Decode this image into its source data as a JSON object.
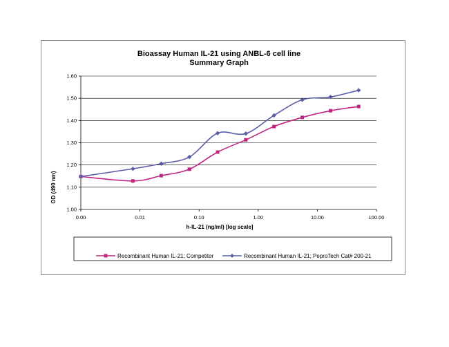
{
  "chart_data": {
    "type": "line",
    "title": "Bioassay Human IL-21 using ANBL-6 cell line",
    "subtitle": "Summary Graph",
    "xlabel": "h-IL-21 (ng/ml) [log scale]",
    "ylabel": "OD (490 nm)",
    "x_tick_labels": [
      "0.00",
      "0.01",
      "0.10",
      "1.00",
      "10.00",
      "100.00"
    ],
    "y_tick_labels": [
      "1.00",
      "1.10",
      "1.20",
      "1.30",
      "1.40",
      "1.50",
      "1.60"
    ],
    "ylim": [
      1.0,
      1.6
    ],
    "x_log_decades": [
      -3,
      2
    ],
    "x": [
      0.001,
      0.0076,
      0.0229,
      0.0686,
      0.206,
      0.617,
      1.85,
      5.56,
      16.7,
      50
    ],
    "series": [
      {
        "name": "Recombinant Human IL-21; Competitor",
        "color": "#c0267f",
        "marker": "square",
        "values": [
          1.148,
          1.128,
          1.152,
          1.181,
          1.258,
          1.313,
          1.373,
          1.414,
          1.444,
          1.463
        ]
      },
      {
        "name": "Recombinant Human IL-21; PeproTech Cat# 200-21",
        "color": "#5a5ea8",
        "marker": "diamond",
        "values": [
          1.148,
          1.183,
          1.206,
          1.236,
          1.343,
          1.341,
          1.423,
          1.493,
          1.506,
          1.536
        ]
      }
    ]
  }
}
